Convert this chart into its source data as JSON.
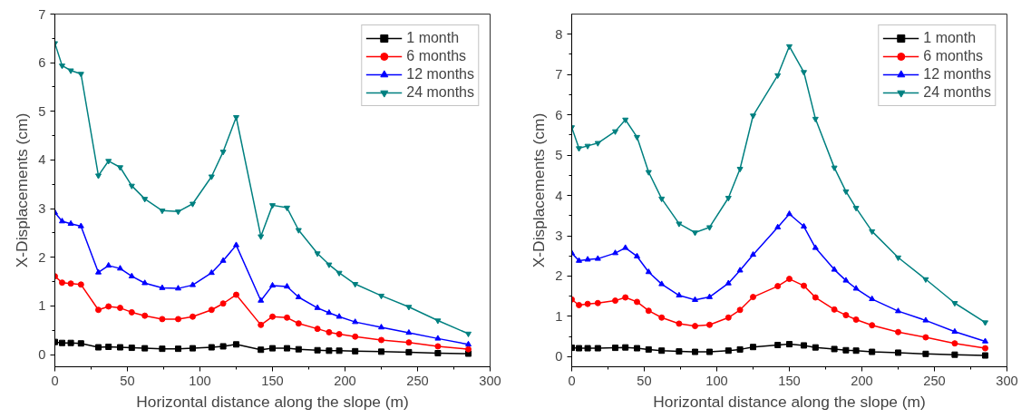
{
  "chart_data": [
    {
      "type": "line",
      "xlabel": "Horizontal distance along the slope (m)",
      "ylabel": "X-Displacements (cm)",
      "x": [
        0,
        5,
        11,
        18,
        30,
        37,
        45,
        53,
        62,
        74,
        85,
        95,
        108,
        116,
        125,
        142,
        150,
        160,
        168,
        181,
        189,
        196,
        207,
        225,
        244,
        264,
        285
      ],
      "xlim": [
        0,
        300
      ],
      "xticks": [
        0,
        50,
        100,
        150,
        200,
        250,
        300
      ],
      "ylim": [
        -0.25,
        7
      ],
      "yticks": [
        0,
        1,
        2,
        3,
        4,
        5,
        6,
        7
      ],
      "grid": false,
      "legend": "top right",
      "series": [
        {
          "name": "1 month",
          "color": "#000000",
          "marker": "square",
          "values": [
            0.26,
            0.24,
            0.24,
            0.23,
            0.15,
            0.16,
            0.15,
            0.14,
            0.13,
            0.12,
            0.12,
            0.13,
            0.15,
            0.17,
            0.21,
            0.1,
            0.13,
            0.13,
            0.11,
            0.09,
            0.08,
            0.08,
            0.07,
            0.06,
            0.05,
            0.03,
            0.02
          ]
        },
        {
          "name": "6 months",
          "color": "#ff0000",
          "marker": "circle",
          "values": [
            1.61,
            1.48,
            1.46,
            1.44,
            0.92,
            0.99,
            0.96,
            0.87,
            0.8,
            0.73,
            0.73,
            0.78,
            0.92,
            1.05,
            1.23,
            0.61,
            0.78,
            0.76,
            0.64,
            0.53,
            0.46,
            0.42,
            0.37,
            0.3,
            0.25,
            0.17,
            0.11
          ]
        },
        {
          "name": "12 months",
          "color": "#0000ff",
          "marker": "triangle",
          "values": [
            2.92,
            2.74,
            2.69,
            2.64,
            1.69,
            1.83,
            1.77,
            1.61,
            1.47,
            1.37,
            1.36,
            1.43,
            1.68,
            1.93,
            2.25,
            1.11,
            1.42,
            1.4,
            1.18,
            0.96,
            0.86,
            0.78,
            0.67,
            0.56,
            0.45,
            0.33,
            0.21
          ]
        },
        {
          "name": "24 months",
          "color": "#008080",
          "marker": "triangle",
          "values": [
            6.4,
            5.94,
            5.84,
            5.77,
            3.68,
            3.98,
            3.85,
            3.47,
            3.2,
            2.96,
            2.94,
            3.1,
            3.66,
            4.17,
            4.88,
            2.43,
            3.07,
            3.02,
            2.56,
            2.08,
            1.85,
            1.68,
            1.45,
            1.21,
            0.98,
            0.7,
            0.43
          ]
        }
      ]
    },
    {
      "type": "line",
      "xlabel": "Horizontal distance along the slope (m)",
      "ylabel": "X-Displacements (cm)",
      "x": [
        0,
        5,
        11,
        18,
        30,
        37,
        45,
        53,
        62,
        74,
        85,
        95,
        108,
        116,
        125,
        142,
        150,
        160,
        168,
        181,
        189,
        196,
        207,
        225,
        244,
        264,
        285
      ],
      "xlim": [
        0,
        300
      ],
      "xticks": [
        0,
        50,
        100,
        150,
        200,
        250,
        300
      ],
      "ylim": [
        -0.25,
        8.5
      ],
      "yticks": [
        0,
        1,
        2,
        3,
        4,
        5,
        6,
        7,
        8
      ],
      "grid": false,
      "legend": "top right",
      "series": [
        {
          "name": "1 month",
          "color": "#000000",
          "marker": "square",
          "values": [
            0.22,
            0.21,
            0.21,
            0.21,
            0.22,
            0.23,
            0.21,
            0.18,
            0.15,
            0.13,
            0.12,
            0.12,
            0.15,
            0.18,
            0.24,
            0.29,
            0.31,
            0.28,
            0.23,
            0.19,
            0.16,
            0.15,
            0.12,
            0.1,
            0.07,
            0.05,
            0.03
          ]
        },
        {
          "name": "6 months",
          "color": "#ff0000",
          "marker": "circle",
          "values": [
            1.42,
            1.28,
            1.31,
            1.33,
            1.39,
            1.47,
            1.36,
            1.14,
            0.97,
            0.82,
            0.76,
            0.79,
            0.97,
            1.16,
            1.48,
            1.75,
            1.93,
            1.76,
            1.47,
            1.17,
            1.03,
            0.92,
            0.78,
            0.61,
            0.48,
            0.33,
            0.21
          ]
        },
        {
          "name": "12 months",
          "color": "#0000ff",
          "marker": "triangle",
          "values": [
            2.57,
            2.38,
            2.41,
            2.43,
            2.57,
            2.7,
            2.49,
            2.1,
            1.8,
            1.52,
            1.41,
            1.48,
            1.82,
            2.14,
            2.53,
            3.21,
            3.54,
            3.23,
            2.7,
            2.16,
            1.89,
            1.69,
            1.43,
            1.13,
            0.9,
            0.62,
            0.38
          ]
        },
        {
          "name": "24 months",
          "color": "#008080",
          "marker": "triangle",
          "values": [
            5.69,
            5.17,
            5.23,
            5.3,
            5.59,
            5.88,
            5.45,
            4.58,
            3.92,
            3.3,
            3.08,
            3.21,
            3.94,
            4.66,
            5.98,
            6.98,
            7.7,
            7.06,
            5.9,
            4.69,
            4.1,
            3.69,
            3.11,
            2.46,
            1.92,
            1.33,
            0.85
          ]
        }
      ]
    }
  ]
}
